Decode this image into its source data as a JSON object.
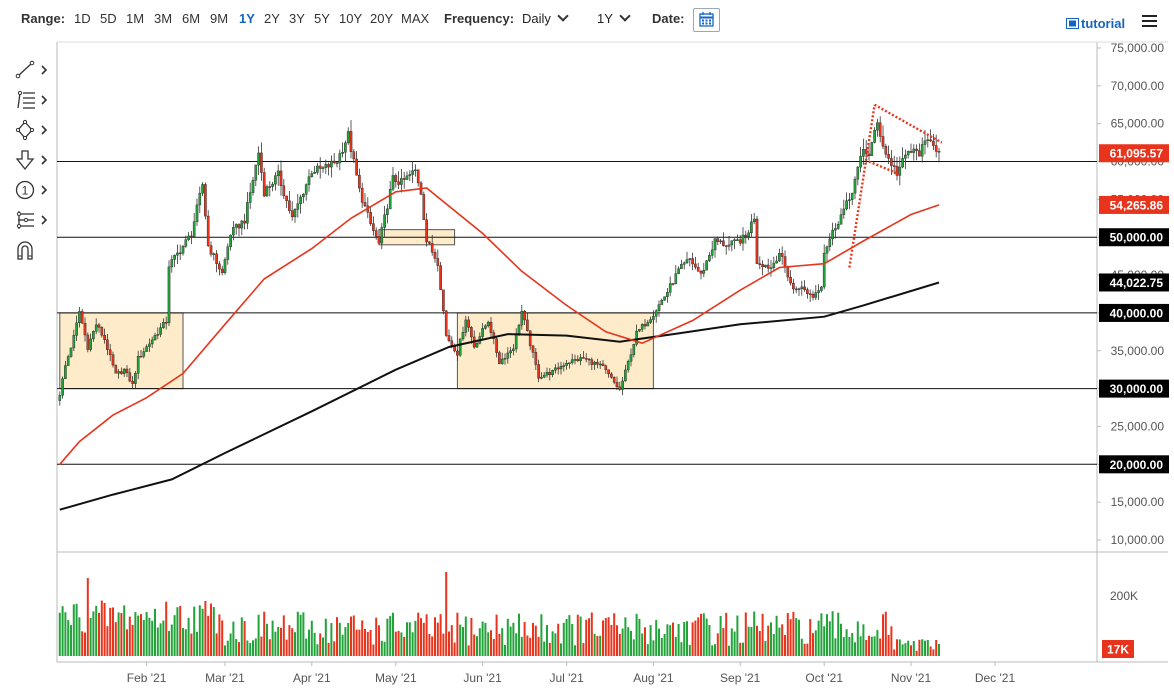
{
  "toolbar": {
    "range_label": "Range:",
    "ranges": [
      "1D",
      "5D",
      "1M",
      "3M",
      "6M",
      "9M",
      "1Y",
      "2Y",
      "3Y",
      "5Y",
      "10Y",
      "20Y",
      "MAX"
    ],
    "active_range": "1Y",
    "frequency_label": "Frequency:",
    "frequency_value": "Daily",
    "period_value": "1Y",
    "date_label": "Date:",
    "tutorial_label": "tutorial"
  },
  "tools": [
    "line-tool-icon",
    "fibonacci-tool-icon",
    "shapes-tool-icon",
    "arrow-tool-icon",
    "annotation-tool-icon",
    "measure-tool-icon",
    "magnet-icon"
  ],
  "chart_data": {
    "type": "candlestick",
    "x_ticks": [
      "Feb '21",
      "Mar '21",
      "Apr '21",
      "May '21",
      "Jun '21",
      "Jul '21",
      "Aug '21",
      "Sep '21",
      "Oct '21",
      "Nov '21",
      "Dec '21"
    ],
    "y_ticks": [
      "75,000.00",
      "70,000.00",
      "65,000.00",
      "60,000.00",
      "55,000.00",
      "50,000.00",
      "45,000.00",
      "40,000.00",
      "35,000.00",
      "30,000.00",
      "25,000.00",
      "20,000.00",
      "15,000.00",
      "10,000.00"
    ],
    "ylim": [
      10000,
      75000
    ],
    "price_labels": [
      {
        "text": "61,095.57",
        "value": 61095.57,
        "color": "#e8341c"
      },
      {
        "text": "54,265.86",
        "value": 54265.86,
        "color": "#e8341c"
      },
      {
        "text": "50,000.00",
        "value": 50000,
        "color": "#000000"
      },
      {
        "text": "44,022.75",
        "value": 44022.75,
        "color": "#000000"
      },
      {
        "text": "40,000.00",
        "value": 40000,
        "color": "#000000"
      },
      {
        "text": "30,000.00",
        "value": 30000,
        "color": "#000000"
      },
      {
        "text": "20,000.00",
        "value": 20000,
        "color": "#000000"
      }
    ],
    "horizontal_lines": [
      60000,
      50000,
      40000,
      30000,
      20000
    ],
    "zones": [
      {
        "x0": "2021-01-01",
        "x1": "2021-02-14",
        "y0": 30000,
        "y1": 40000
      },
      {
        "x0": "2021-04-25",
        "x1": "2021-05-22",
        "y0": 49000,
        "y1": 51000
      },
      {
        "x0": "2021-05-23",
        "x1": "2021-08-01",
        "y0": 30000,
        "y1": 40000
      }
    ],
    "close_anchors": [
      [
        "2021-01-01",
        29300
      ],
      [
        "2021-01-03",
        33000
      ],
      [
        "2021-01-06",
        36800
      ],
      [
        "2021-01-08",
        40200
      ],
      [
        "2021-01-11",
        35500
      ],
      [
        "2021-01-14",
        38500
      ],
      [
        "2021-01-17",
        36500
      ],
      [
        "2021-01-21",
        31800
      ],
      [
        "2021-01-24",
        32500
      ],
      [
        "2021-01-27",
        30500
      ],
      [
        "2021-01-29",
        34000
      ],
      [
        "2021-02-03",
        36500
      ],
      [
        "2021-02-08",
        38900
      ],
      [
        "2021-02-09",
        46300
      ],
      [
        "2021-02-14",
        48800
      ],
      [
        "2021-02-17",
        50500
      ],
      [
        "2021-02-21",
        57000
      ],
      [
        "2021-02-23",
        48900
      ],
      [
        "2021-02-28",
        45200
      ],
      [
        "2021-03-03",
        50500
      ],
      [
        "2021-03-08",
        52300
      ],
      [
        "2021-03-13",
        61200
      ],
      [
        "2021-03-15",
        56000
      ],
      [
        "2021-03-20",
        58200
      ],
      [
        "2021-03-25",
        52500
      ],
      [
        "2021-04-01",
        58800
      ],
      [
        "2021-04-05",
        59000
      ],
      [
        "2021-04-10",
        60100
      ],
      [
        "2021-04-14",
        63500
      ],
      [
        "2021-04-18",
        56200
      ],
      [
        "2021-04-22",
        51700
      ],
      [
        "2021-04-25",
        49100
      ],
      [
        "2021-04-30",
        57700
      ],
      [
        "2021-05-03",
        57200
      ],
      [
        "2021-05-08",
        58800
      ],
      [
        "2021-05-10",
        56000
      ],
      [
        "2021-05-12",
        49500
      ],
      [
        "2021-05-16",
        46700
      ],
      [
        "2021-05-19",
        37000
      ],
      [
        "2021-05-23",
        34700
      ],
      [
        "2021-05-26",
        39300
      ],
      [
        "2021-05-29",
        35600
      ],
      [
        "2021-06-03",
        39000
      ],
      [
        "2021-06-07",
        33500
      ],
      [
        "2021-06-12",
        35500
      ],
      [
        "2021-06-15",
        40200
      ],
      [
        "2021-06-21",
        31600
      ],
      [
        "2021-06-26",
        32200
      ],
      [
        "2021-07-01",
        33500
      ],
      [
        "2021-07-07",
        34000
      ],
      [
        "2021-07-14",
        32800
      ],
      [
        "2021-07-20",
        29800
      ],
      [
        "2021-07-22",
        32200
      ],
      [
        "2021-07-26",
        37300
      ],
      [
        "2021-08-01",
        39900
      ],
      [
        "2021-08-06",
        42800
      ],
      [
        "2021-08-10",
        45600
      ],
      [
        "2021-08-14",
        47100
      ],
      [
        "2021-08-18",
        45000
      ],
      [
        "2021-08-23",
        49500
      ],
      [
        "2021-08-28",
        48900
      ],
      [
        "2021-09-03",
        50000
      ],
      [
        "2021-09-06",
        52700
      ],
      [
        "2021-09-07",
        46800
      ],
      [
        "2021-09-12",
        46000
      ],
      [
        "2021-09-15",
        48000
      ],
      [
        "2021-09-20",
        43000
      ],
      [
        "2021-09-22",
        43500
      ],
      [
        "2021-09-27",
        42200
      ],
      [
        "2021-09-30",
        43800
      ],
      [
        "2021-10-01",
        48100
      ],
      [
        "2021-10-05",
        51500
      ],
      [
        "2021-10-10",
        55000
      ],
      [
        "2021-10-15",
        61500
      ],
      [
        "2021-10-17",
        61000
      ],
      [
        "2021-10-20",
        65000
      ],
      [
        "2021-10-23",
        61000
      ],
      [
        "2021-10-27",
        58500
      ],
      [
        "2021-10-31",
        61300
      ],
      [
        "2021-11-04",
        61200
      ],
      [
        "2021-11-08",
        63200
      ],
      [
        "2021-11-11",
        61100
      ]
    ],
    "ma50": [
      [
        "2021-01-01",
        20000
      ],
      [
        "2021-01-08",
        23000
      ],
      [
        "2021-01-20",
        26500
      ],
      [
        "2021-02-01",
        28800
      ],
      [
        "2021-02-14",
        32000
      ],
      [
        "2021-03-01",
        38500
      ],
      [
        "2021-03-15",
        44500
      ],
      [
        "2021-04-01",
        48500
      ],
      [
        "2021-04-15",
        52500
      ],
      [
        "2021-05-01",
        56000
      ],
      [
        "2021-05-12",
        56500
      ],
      [
        "2021-06-01",
        50500
      ],
      [
        "2021-06-15",
        45500
      ],
      [
        "2021-07-01",
        41000
      ],
      [
        "2021-07-15",
        37500
      ],
      [
        "2021-07-28",
        36000
      ],
      [
        "2021-08-15",
        39000
      ],
      [
        "2021-09-01",
        43000
      ],
      [
        "2021-09-15",
        46000
      ],
      [
        "2021-10-01",
        46500
      ],
      [
        "2021-10-15",
        49500
      ],
      [
        "2021-11-01",
        53000
      ],
      [
        "2021-11-11",
        54265.86
      ]
    ],
    "ma200": [
      [
        "2021-01-01",
        14000
      ],
      [
        "2021-01-20",
        16000
      ],
      [
        "2021-02-10",
        18000
      ],
      [
        "2021-03-01",
        21500
      ],
      [
        "2021-04-01",
        27000
      ],
      [
        "2021-05-01",
        32500
      ],
      [
        "2021-05-20",
        35500
      ],
      [
        "2021-06-10",
        37200
      ],
      [
        "2021-07-01",
        37000
      ],
      [
        "2021-07-20",
        36200
      ],
      [
        "2021-08-10",
        37300
      ],
      [
        "2021-09-01",
        38500
      ],
      [
        "2021-10-01",
        39500
      ],
      [
        "2021-10-15",
        41000
      ],
      [
        "2021-11-11",
        44022.75
      ]
    ],
    "pennant_lines": [
      [
        [
          "2021-10-10",
          46000
        ],
        [
          "2021-10-19",
          67500
        ]
      ],
      [
        [
          "2021-10-19",
          67500
        ],
        [
          "2021-11-12",
          62500
        ]
      ],
      [
        [
          "2021-10-17",
          60000
        ],
        [
          "2021-10-28",
          58300
        ]
      ]
    ],
    "volume_labels": [
      "200K",
      "17K"
    ],
    "volume_last": {
      "text": "17K",
      "color": "#e8341c"
    }
  }
}
